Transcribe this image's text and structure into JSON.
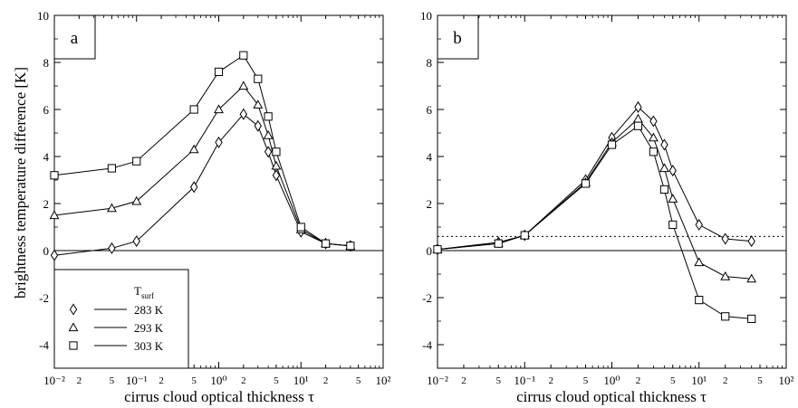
{
  "figure": {
    "ylabel": "brightness temperature difference [K]",
    "xlabel": "cirrus cloud optical thickness τ"
  },
  "legend": {
    "title_main": "T",
    "title_sub": "surf",
    "entries": [
      {
        "label": "283 K",
        "marker": "diamond"
      },
      {
        "label": "293 K",
        "marker": "triangle"
      },
      {
        "label": "303 K",
        "marker": "square"
      }
    ]
  },
  "chart_data": [
    {
      "type": "line",
      "panel_label": "a",
      "xscale": "log",
      "xlim": [
        0.01,
        100
      ],
      "ylim": [
        -5,
        10
      ],
      "xlabel": "cirrus cloud optical thickness τ",
      "ylabel": "brightness temperature difference [K]",
      "x_tick_labels": [
        "10⁻²",
        "2",
        "5",
        "10⁻¹",
        "2",
        "5",
        "10⁰",
        "2",
        "5",
        "10¹",
        "2",
        "5",
        "10²"
      ],
      "y_tick_labels": [
        "-4",
        "-2",
        "0",
        "2",
        "4",
        "6",
        "8",
        "10"
      ],
      "reference_lines": [
        {
          "y": 0,
          "style": "solid"
        }
      ],
      "series": [
        {
          "name": "283 K",
          "marker": "diamond",
          "x": [
            0.01,
            0.05,
            0.1,
            0.5,
            1,
            2,
            3,
            4,
            5,
            10,
            20,
            40
          ],
          "y": [
            -0.2,
            0.1,
            0.4,
            2.7,
            4.6,
            5.8,
            5.3,
            4.2,
            3.2,
            0.8,
            0.3,
            0.2
          ]
        },
        {
          "name": "293 K",
          "marker": "triangle",
          "x": [
            0.01,
            0.05,
            0.1,
            0.5,
            1,
            2,
            3,
            4,
            5,
            10,
            20,
            40
          ],
          "y": [
            1.5,
            1.8,
            2.1,
            4.3,
            6.0,
            7.0,
            6.2,
            4.9,
            3.6,
            0.9,
            0.3,
            0.2
          ]
        },
        {
          "name": "303 K",
          "marker": "square",
          "x": [
            0.01,
            0.05,
            0.1,
            0.5,
            1,
            2,
            3,
            4,
            5,
            10,
            20,
            40
          ],
          "y": [
            3.2,
            3.5,
            3.8,
            6.0,
            7.6,
            8.3,
            7.3,
            5.7,
            4.2,
            1.0,
            0.3,
            0.2
          ]
        }
      ]
    },
    {
      "type": "line",
      "panel_label": "b",
      "xscale": "log",
      "xlim": [
        0.01,
        100
      ],
      "ylim": [
        -5,
        10
      ],
      "xlabel": "cirrus cloud optical thickness τ",
      "x_tick_labels": [
        "10⁻²",
        "2",
        "5",
        "10⁻¹",
        "2",
        "5",
        "10⁰",
        "2",
        "5",
        "10¹",
        "2",
        "5",
        "10²"
      ],
      "y_tick_labels": [
        "-4",
        "-2",
        "0",
        "2",
        "4",
        "6",
        "8",
        "10"
      ],
      "reference_lines": [
        {
          "y": 0,
          "style": "solid"
        },
        {
          "y": 0.6,
          "style": "dotted"
        }
      ],
      "series": [
        {
          "name": "283 K",
          "marker": "diamond",
          "x": [
            0.01,
            0.05,
            0.1,
            0.5,
            1,
            2,
            3,
            4,
            5,
            10,
            20,
            40
          ],
          "y": [
            0.05,
            0.35,
            0.65,
            3.0,
            4.8,
            6.1,
            5.5,
            4.5,
            3.4,
            1.1,
            0.5,
            0.4
          ]
        },
        {
          "name": "293 K",
          "marker": "triangle",
          "x": [
            0.01,
            0.05,
            0.1,
            0.5,
            1,
            2,
            3,
            4,
            5,
            10,
            20,
            40
          ],
          "y": [
            0.05,
            0.3,
            0.65,
            2.9,
            4.6,
            5.6,
            4.8,
            3.5,
            2.2,
            -0.5,
            -1.1,
            -1.2
          ]
        },
        {
          "name": "303 K",
          "marker": "square",
          "x": [
            0.01,
            0.05,
            0.1,
            0.5,
            1,
            2,
            3,
            4,
            5,
            10,
            20,
            40
          ],
          "y": [
            0.05,
            0.3,
            0.65,
            2.85,
            4.5,
            5.3,
            4.2,
            2.6,
            1.1,
            -2.1,
            -2.8,
            -2.9
          ]
        }
      ]
    }
  ]
}
